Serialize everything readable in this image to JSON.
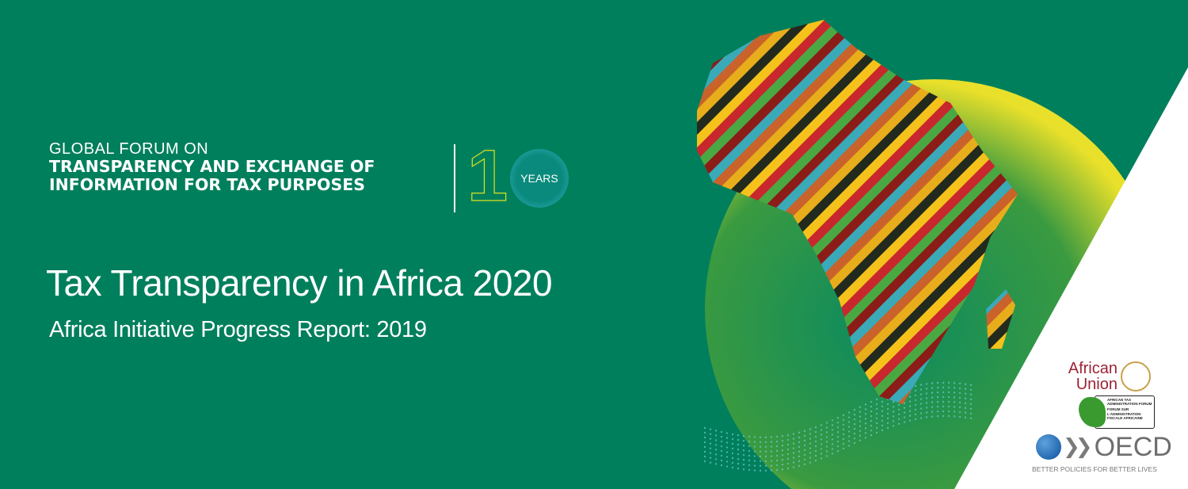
{
  "header": {
    "line1": "GLOBAL FORUM ON",
    "line2": "TRANSPARENCY AND EXCHANGE OF",
    "line3": "INFORMATION FOR TAX PURPOSES",
    "anniversary_number": "1",
    "anniversary_label": "YEARS"
  },
  "title": "Tax Transparency in Africa 2020",
  "subtitle": "Africa Initiative Progress Report: 2019",
  "logos": {
    "african_union": {
      "line1": "African",
      "line2": "Union"
    },
    "ataf": {
      "en": "AFRICAN TAX ADMINISTRATION FORUM",
      "fr": "FORUM SUR L'ADMINISTRATION FISCALE AFRICAINE"
    },
    "oecd": {
      "name": "OECD",
      "tagline": "BETTER POLICIES FOR BETTER LIVES"
    }
  },
  "colors": {
    "background": "#007f5c",
    "stripes": [
      "#e8ad1b",
      "#c8272e",
      "#3aa9b8",
      "#222a1e",
      "#4aa843",
      "#c9622b",
      "#f5c21b",
      "#8c1c17"
    ]
  }
}
